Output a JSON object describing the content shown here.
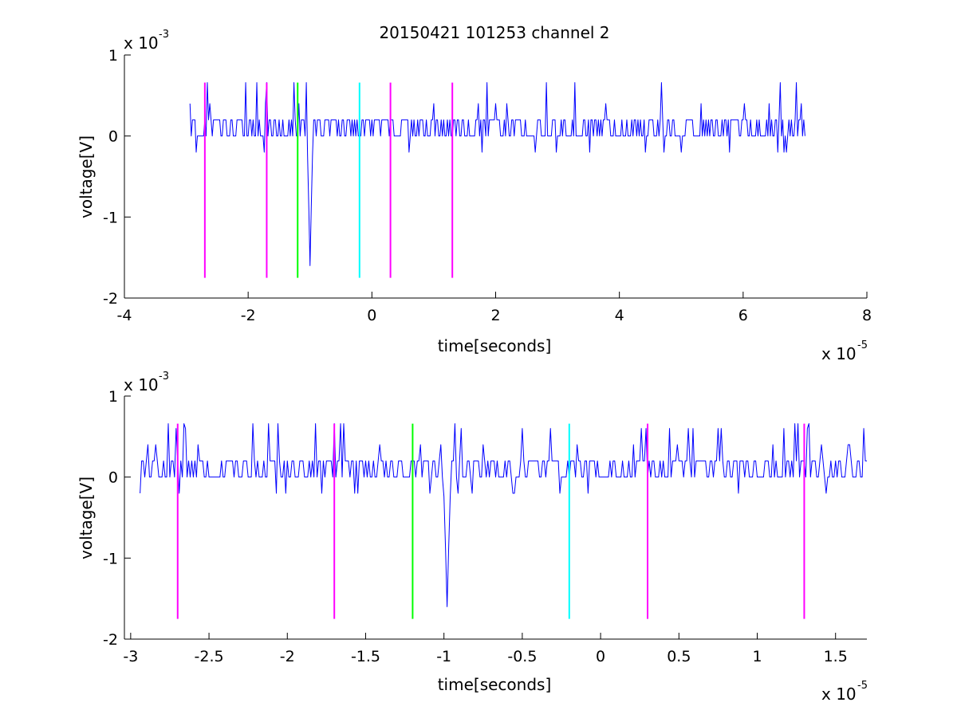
{
  "figure": {
    "title": "20150421 101253 channel 2"
  },
  "colors": {
    "signal": "#0000ff",
    "magenta_marker": "#ff00ff",
    "green_marker": "#00ff00",
    "cyan_marker": "#00ffff",
    "axes": "#000000",
    "background": "#ffffff"
  },
  "chart_data": [
    {
      "type": "line",
      "title": "20150421 101253 channel 2",
      "xlabel": "time[seconds]",
      "ylabel": "voltage[V]",
      "x_multiplier_label": "x 10",
      "x_multiplier_exp": "-5",
      "y_multiplier_label": "x 10",
      "y_multiplier_exp": "-3",
      "xlim": [
        -4e-05,
        8e-05
      ],
      "ylim": [
        -0.002,
        0.001
      ],
      "x_ticks": [
        -4e-05,
        -2e-05,
        0,
        2e-05,
        4e-05,
        6e-05,
        8e-05
      ],
      "x_tick_labels": [
        "-4",
        "-2",
        "0",
        "2",
        "4",
        "6",
        "8"
      ],
      "y_ticks": [
        -0.002,
        -0.001,
        0,
        0.001
      ],
      "y_tick_labels": [
        "-2",
        "-1",
        "0",
        "1"
      ],
      "grid": false,
      "series": [
        {
          "role": "signal",
          "x_range": [
            -2.94e-05,
            7e-05
          ],
          "sample_step": 2e-07,
          "baseline_levels": [
            0,
            0.0002
          ],
          "noise_spikes": [
            0.0004,
            -0.0002
          ],
          "dip": {
            "x": -1e-05,
            "y": -0.0016
          },
          "peak_y": 0.00066
        }
      ],
      "markers": [
        {
          "x": -2.7e-05,
          "y_range": [
            -0.00175,
            0.00066
          ],
          "color": "magenta"
        },
        {
          "x": -1.7e-05,
          "y_range": [
            -0.00175,
            0.00066
          ],
          "color": "magenta"
        },
        {
          "x": -1.2e-05,
          "y_range": [
            -0.00175,
            0.00066
          ],
          "color": "green"
        },
        {
          "x": -2e-06,
          "y_range": [
            -0.00175,
            0.00066
          ],
          "color": "cyan"
        },
        {
          "x": 3e-06,
          "y_range": [
            -0.00175,
            0.00066
          ],
          "color": "magenta"
        },
        {
          "x": 1.3e-05,
          "y_range": [
            -0.00175,
            0.00066
          ],
          "color": "magenta"
        }
      ]
    },
    {
      "type": "line",
      "xlabel": "time[seconds]",
      "ylabel": "voltage[V]",
      "x_multiplier_label": "x 10",
      "x_multiplier_exp": "-5",
      "y_multiplier_label": "x 10",
      "y_multiplier_exp": "-3",
      "xlim": [
        -3.04e-05,
        1.7e-05
      ],
      "ylim": [
        -0.002,
        0.001
      ],
      "x_ticks": [
        -3e-05,
        -2.5e-05,
        -2e-05,
        -1.5e-05,
        -1e-05,
        -5e-06,
        0,
        5e-06,
        1e-05,
        1.5e-05
      ],
      "x_tick_labels": [
        "-3",
        "-2.5",
        "-2",
        "-1.5",
        "-1",
        "-0.5",
        "0",
        "0.5",
        "1",
        "1.5"
      ],
      "y_ticks": [
        -0.002,
        -0.001,
        0,
        0.001
      ],
      "y_tick_labels": [
        "-2",
        "-1",
        "0",
        "1"
      ],
      "grid": false,
      "series": [
        {
          "role": "signal",
          "x_range": [
            -2.94e-05,
            1.7e-05
          ],
          "sample_step": 1e-07,
          "baseline_levels": [
            0,
            0.0002
          ],
          "noise_spikes": [
            0.0004,
            0.0006,
            -0.0002
          ],
          "dip": {
            "x": -9.8e-06,
            "y": -0.0016
          },
          "peak_y": 0.00066
        }
      ],
      "markers": [
        {
          "x": -2.7e-05,
          "y_range": [
            -0.00175,
            0.00066
          ],
          "color": "magenta"
        },
        {
          "x": -1.7e-05,
          "y_range": [
            -0.00175,
            0.00066
          ],
          "color": "magenta"
        },
        {
          "x": -1.2e-05,
          "y_range": [
            -0.00175,
            0.00066
          ],
          "color": "green"
        },
        {
          "x": -2e-06,
          "y_range": [
            -0.00175,
            0.00066
          ],
          "color": "cyan"
        },
        {
          "x": 3e-06,
          "y_range": [
            -0.00175,
            0.00066
          ],
          "color": "magenta"
        },
        {
          "x": 1.3e-05,
          "y_range": [
            -0.00175,
            0.00066
          ],
          "color": "magenta"
        }
      ]
    }
  ]
}
